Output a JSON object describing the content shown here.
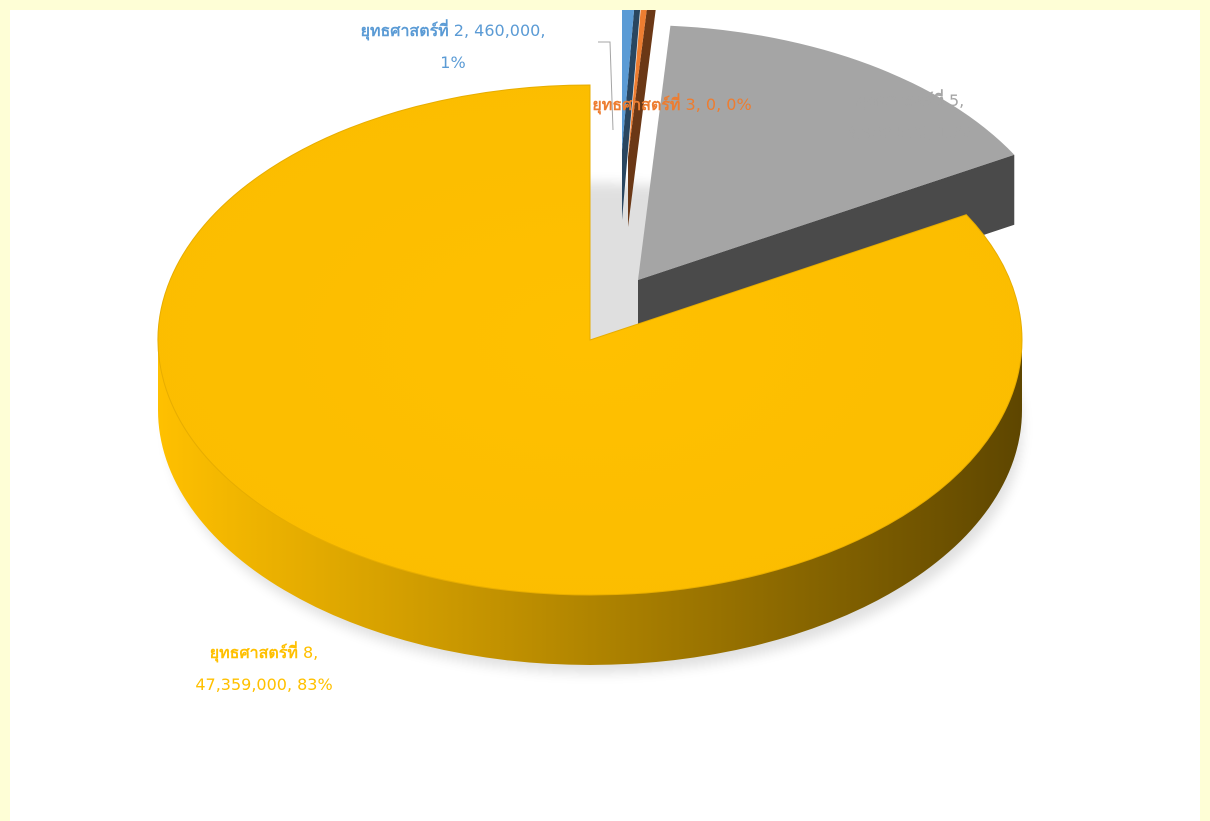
{
  "chart_data": {
    "type": "pie",
    "style": "3d-exploded",
    "title": "",
    "slices": [
      {
        "category": "ยุทธศาสตร์ที่ 2",
        "value": 460000,
        "percent": "1%",
        "color": "#5b9bd5",
        "label_lines": [
          {
            "cat": "ยุทธศาสตร์ที่",
            "rest": " 2, 460,000,"
          },
          {
            "cat": "",
            "rest": "1%"
          }
        ]
      },
      {
        "category": "ยุทธศาสตร์ที่ 3",
        "value": 0,
        "percent": "0%",
        "color": "#ed7d31",
        "label_lines": [
          {
            "cat": "ยุทธศาสตร์ที่",
            "rest": " 3, 0, 0%"
          }
        ]
      },
      {
        "category": "ยุทธศาสตร์ที่ 5",
        "value": 8900500,
        "percent": "16%",
        "color": "#a5a5a5",
        "label_lines": [
          {
            "cat": "ยุทธศาสตร์ที่",
            "rest": " 5,"
          },
          {
            "cat": "",
            "rest": "8,900,500, 16%"
          }
        ]
      },
      {
        "category": "ยุทธศาสตร์ที่ 8",
        "value": 47359000,
        "percent": "83%",
        "color": "#ffc000",
        "label_lines": [
          {
            "cat": "ยุทธศาสตร์ที่",
            "rest": " 8,"
          },
          {
            "cat": "",
            "rest": "47,359,000, 83%"
          }
        ]
      }
    ],
    "legend": "none"
  }
}
